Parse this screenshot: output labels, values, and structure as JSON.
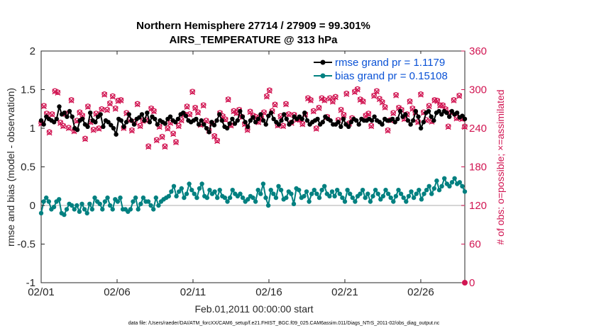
{
  "chart_data": {
    "type": "line",
    "title": "Northern Hemisphere 27714 / 27909 = 99.301%",
    "subtitle": "AIRS_TEMPERATURE @ 313 hPa",
    "xlabel": "Feb.01,2011 00:00:00 start",
    "ylabel_left": "rmse and bias (model - observation)",
    "ylabel_right": "# of obs: o=possible; ×=assimilated",
    "footer": "data file: /Users/raeder/DAI/ATM_forcXX/CAM6_setup/f.e21.FHIST_BGC.f09_025.CAM6assim.011/Diags_NTrS_2011-02/obs_diag_output.nc",
    "x_ticks": [
      "02/01",
      "02/06",
      "02/11",
      "02/16",
      "02/21",
      "02/26"
    ],
    "y_left_ticks": [
      "-1",
      "-0.5",
      "0",
      "0.5",
      "1",
      "1.5",
      "2"
    ],
    "y_right_ticks": [
      "0",
      "60",
      "120",
      "180",
      "240",
      "300",
      "360"
    ],
    "ylim_left": [
      -1,
      2
    ],
    "ylim_right": [
      0,
      360
    ],
    "x_range_days": [
      0,
      27.9
    ],
    "x_unit": "days since 2011-02-01 00:00",
    "legend": [
      {
        "label": "rmse grand pr = 1.1179",
        "color": "#000000"
      },
      {
        "label": "bias grand pr = 0.15108",
        "color": "#008080"
      }
    ],
    "colors": {
      "rmse": "#000000",
      "bias": "#008080",
      "obs": "#d11552",
      "zero_line": "#c8c8c8"
    },
    "series": [
      {
        "name": "rmse",
        "axis": "left",
        "values": [
          1.1,
          1.05,
          1.15,
          1.12,
          1.1,
          1.08,
          1.12,
          1.28,
          1.18,
          1.2,
          1.15,
          1.22,
          1.15,
          1.0,
          0.98,
          1.1,
          1.12,
          1.05,
          1.02,
          1.2,
          1.1,
          1.08,
          1.15,
          1.18,
          1.02,
          1.1,
          1.08,
          1.04,
          1.0,
          0.92,
          1.12,
          1.1,
          1.02,
          1.08,
          1.18,
          1.1,
          1.05,
          1.12,
          1.14,
          1.18,
          1.1,
          1.2,
          1.08,
          1.15,
          1.12,
          1.05,
          1.1,
          1.08,
          1.06,
          1.12,
          1.15,
          1.1,
          1.08,
          1.12,
          1.18,
          1.2,
          1.16,
          1.1,
          1.08,
          1.1,
          1.12,
          1.05,
          1.1,
          1.05,
          1.0,
          0.95,
          1.08,
          1.04,
          1.1,
          1.18,
          1.1,
          1.02,
          1.0,
          1.06,
          1.12,
          1.06,
          1.1,
          1.22,
          1.15,
          1.08,
          1.02,
          1.1,
          1.14,
          1.08,
          1.12,
          1.18,
          1.1,
          1.05,
          1.16,
          1.2,
          1.12,
          1.08,
          1.05,
          1.1,
          1.18,
          1.12,
          1.05,
          1.08,
          1.15,
          1.12,
          1.15,
          1.12,
          1.2,
          1.1,
          1.05,
          1.08,
          1.1,
          1.12,
          1.05,
          1.08,
          1.15,
          1.12,
          1.1,
          1.05,
          1.05,
          1.08,
          1.02,
          1.12,
          1.05,
          1.02,
          1.08,
          1.12,
          1.1,
          1.05,
          1.12,
          1.1,
          1.1,
          1.12,
          1.1,
          1.15,
          1.1,
          1.08,
          1.05,
          1.12,
          1.1,
          1.1,
          1.12,
          1.08,
          1.12,
          1.22,
          1.15,
          1.18,
          1.1,
          1.05,
          1.1,
          1.22,
          1.15,
          1.0,
          1.08,
          1.2,
          1.22,
          1.15,
          1.1,
          1.2,
          1.22,
          1.18,
          1.22,
          1.2,
          1.15,
          1.22,
          1.18,
          1.2,
          1.14,
          1.16,
          1.12
        ]
      },
      {
        "name": "bias",
        "axis": "left",
        "values": [
          -0.1,
          0.05,
          0.1,
          0.05,
          -0.05,
          -0.02,
          0.05,
          0.08,
          -0.1,
          -0.12,
          -0.05,
          0.02,
          0.0,
          -0.05,
          0.0,
          -0.08,
          0.02,
          -0.05,
          -0.1,
          0.02,
          -0.05,
          0.1,
          0.05,
          0.02,
          -0.05,
          0.05,
          0.1,
          0.0,
          -0.05,
          0.08,
          0.05,
          0.1,
          -0.05,
          -0.05,
          -0.08,
          -0.05,
          0.05,
          0.1,
          -0.05,
          0.02,
          0.1,
          0.05,
          0.05,
          0.0,
          -0.05,
          0.1,
          0.0,
          0.05,
          0.08,
          0.1,
          0.12,
          0.18,
          0.25,
          0.12,
          0.18,
          0.22,
          0.1,
          0.15,
          0.28,
          0.2,
          0.15,
          0.1,
          0.22,
          0.28,
          0.12,
          0.1,
          0.2,
          0.15,
          0.18,
          0.1,
          0.2,
          0.12,
          0.1,
          0.05,
          0.1,
          0.2,
          0.15,
          0.12,
          0.15,
          0.1,
          0.05,
          0.08,
          0.12,
          0.1,
          0.05,
          0.2,
          0.15,
          0.28,
          0.1,
          0.0,
          0.2,
          0.15,
          0.1,
          0.25,
          0.2,
          0.08,
          0.1,
          0.18,
          0.15,
          0.02,
          0.22,
          0.2,
          0.1,
          0.12,
          0.18,
          0.05,
          0.15,
          0.2,
          0.15,
          0.1,
          0.2,
          0.25,
          0.15,
          0.12,
          0.18,
          0.12,
          0.2,
          0.15,
          0.1,
          0.05,
          0.2,
          0.15,
          0.1,
          0.05,
          0.12,
          0.15,
          0.2,
          0.1,
          0.15,
          0.05,
          0.12,
          0.2,
          0.15,
          0.08,
          0.12,
          0.2,
          0.15,
          0.1,
          0.05,
          0.12,
          0.2,
          0.15,
          0.1,
          0.05,
          0.12,
          0.18,
          0.1,
          0.15,
          0.2,
          0.08,
          0.15,
          0.2,
          0.25,
          0.15,
          0.22,
          0.32,
          0.2,
          0.25,
          0.35,
          0.28,
          0.25,
          0.3,
          0.35,
          0.28,
          0.3,
          0.25,
          0.18
        ]
      },
      {
        "name": "obs_possible",
        "axis": "right",
        "values": [
          248,
          275,
          263,
          234,
          262,
          298,
          296,
          249,
          244,
          263,
          241,
          284,
          236,
          252,
          265,
          260,
          224,
          274,
          250,
          238,
          263,
          240,
          270,
          293,
          269,
          279,
          290,
          271,
          283,
          284,
          241,
          264,
          253,
          237,
          250,
          278,
          244,
          252,
          253,
          212,
          271,
          267,
          222,
          243,
          227,
          212,
          240,
          249,
          232,
          219,
          244,
          253,
          262,
          274,
          262,
          297,
          272,
          265,
          246,
          276,
          252,
          237,
          248,
          228,
          221,
          264,
          259,
          254,
          285,
          245,
          267,
          264,
          269,
          258,
          247,
          238,
          266,
          260,
          258,
          250,
          257,
          265,
          290,
          299,
          267,
          277,
          245,
          259,
          244,
          278,
          262,
          249,
          261,
          254,
          254,
          247,
          262,
          287,
          284,
          267,
          240,
          272,
          287,
          284,
          258,
          287,
          282,
          289,
          253,
          269,
          261,
          294,
          248,
          256,
          297,
          301,
          285,
          282,
          260,
          263,
          244,
          291,
          298,
          286,
          281,
          273,
          237,
          253,
          264,
          292,
          272,
          269,
          255,
          262,
          282,
          271,
          265,
          250,
          293,
          265,
          253,
          275,
          251,
          284,
          283,
          276,
          276,
          270,
          243,
          265,
          284,
          256,
          291,
          255,
          243
        ]
      },
      {
        "name": "obs_assimilated",
        "axis": "right",
        "values": [
          247,
          274,
          262,
          233,
          261,
          297,
          295,
          248,
          243,
          262,
          240,
          283,
          235,
          251,
          264,
          259,
          223,
          273,
          249,
          237,
          262,
          239,
          269,
          292,
          268,
          278,
          289,
          270,
          282,
          283,
          240,
          263,
          252,
          236,
          249,
          277,
          243,
          251,
          252,
          211,
          270,
          266,
          221,
          242,
          226,
          211,
          239,
          248,
          231,
          218,
          243,
          252,
          261,
          273,
          261,
          296,
          271,
          264,
          245,
          275,
          251,
          236,
          247,
          227,
          220,
          263,
          258,
          253,
          284,
          244,
          266,
          263,
          268,
          257,
          246,
          237,
          265,
          259,
          257,
          249,
          256,
          264,
          289,
          298,
          266,
          276,
          244,
          258,
          243,
          277,
          261,
          248,
          260,
          253,
          253,
          246,
          261,
          286,
          283,
          266,
          239,
          271,
          286,
          283,
          257,
          286,
          281,
          288,
          252,
          268,
          260,
          293,
          247,
          255,
          296,
          300,
          284,
          281,
          259,
          262,
          243,
          290,
          297,
          285,
          280,
          272,
          236,
          252,
          263,
          291,
          271,
          268,
          254,
          261,
          281,
          270,
          264,
          249,
          292,
          264,
          252,
          274,
          250,
          283,
          282,
          275,
          275,
          269,
          242,
          264,
          283,
          255,
          290,
          254,
          242
        ]
      }
    ]
  }
}
